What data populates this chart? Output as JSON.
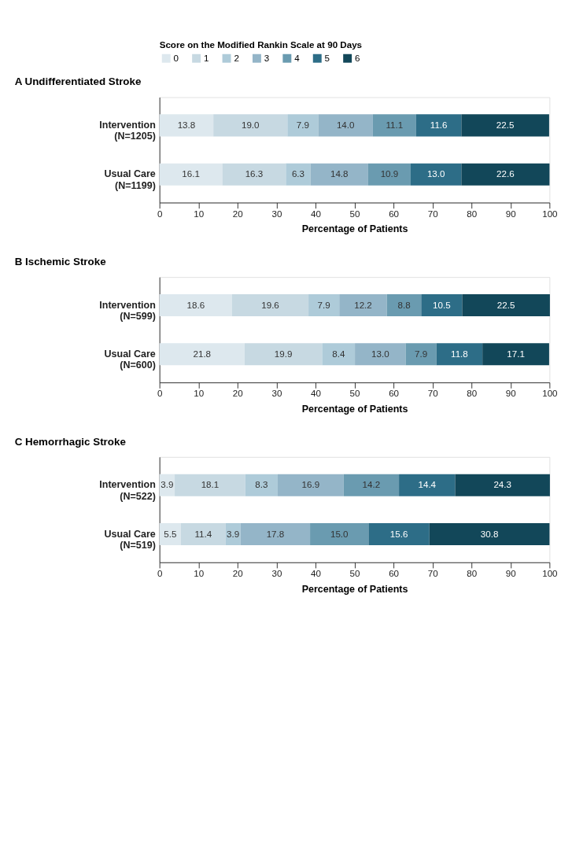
{
  "chart_data": [
    {
      "type": "bar",
      "orientation": "horizontal",
      "stacked": true,
      "title": "A  Undifferentiated Stroke",
      "legend_title": "Score on the Modified Rankin Scale at 90 Days",
      "legend": "top",
      "xlabel": "Percentage of Patients",
      "categories": [
        "Intervention\n(N=1205)",
        "Usual Care\n(N=1199)"
      ],
      "xlim": [
        0,
        100
      ],
      "xticks": [
        0,
        10,
        20,
        30,
        40,
        50,
        60,
        70,
        80,
        90,
        100
      ],
      "series": [
        {
          "name": "0",
          "color": "#dde8ee",
          "values": [
            13.8,
            16.1
          ],
          "value_labels": [
            "13.8",
            "16.1"
          ]
        },
        {
          "name": "1",
          "color": "#c7d9e2",
          "values": [
            19.0,
            16.3
          ],
          "value_labels": [
            "19.0",
            "16.3"
          ]
        },
        {
          "name": "2",
          "color": "#aecbd9",
          "values": [
            7.9,
            6.3
          ],
          "value_labels": [
            "7.9",
            "6.3"
          ]
        },
        {
          "name": "3",
          "color": "#94b5c8",
          "values": [
            14.0,
            14.8
          ],
          "value_labels": [
            "14.0",
            "14.8"
          ]
        },
        {
          "name": "4",
          "color": "#6a9bb0",
          "values": [
            11.1,
            10.9
          ],
          "value_labels": [
            "11.1",
            "10.9"
          ]
        },
        {
          "name": "5",
          "color": "#2d6d87",
          "values": [
            11.6,
            13.0
          ],
          "value_labels": [
            "11.6",
            "13.0"
          ]
        },
        {
          "name": "6",
          "color": "#124759",
          "values": [
            22.5,
            22.6
          ],
          "value_labels": [
            "22.5",
            "22.6"
          ]
        }
      ]
    },
    {
      "type": "bar",
      "orientation": "horizontal",
      "stacked": true,
      "title": "B  Ischemic Stroke",
      "xlabel": "Percentage of Patients",
      "categories": [
        "Intervention\n(N=599)",
        "Usual Care\n(N=600)"
      ],
      "xlim": [
        0,
        100
      ],
      "xticks": [
        0,
        10,
        20,
        30,
        40,
        50,
        60,
        70,
        80,
        90,
        100
      ],
      "series": [
        {
          "color": "#dde8ee",
          "values": [
            18.6,
            21.8
          ],
          "value_labels": [
            "18.6",
            "21.8"
          ]
        },
        {
          "color": "#c7d9e2",
          "values": [
            19.6,
            19.9
          ],
          "value_labels": [
            "19.6",
            "19.9"
          ]
        },
        {
          "color": "#aecbd9",
          "values": [
            7.9,
            8.4
          ],
          "value_labels": [
            "7.9",
            "8.4"
          ]
        },
        {
          "color": "#94b5c8",
          "values": [
            12.2,
            13.0
          ],
          "value_labels": [
            "12.2",
            "13.0"
          ]
        },
        {
          "color": "#6a9bb0",
          "values": [
            8.8,
            7.9
          ],
          "value_labels": [
            "8.8",
            "7.9"
          ]
        },
        {
          "color": "#2d6d87",
          "values": [
            10.5,
            11.8
          ],
          "value_labels": [
            "10.5",
            "11.8"
          ]
        },
        {
          "color": "#124759",
          "values": [
            22.5,
            17.1
          ],
          "value_labels": [
            "22.5",
            "17.1"
          ]
        }
      ]
    },
    {
      "type": "bar",
      "orientation": "horizontal",
      "stacked": true,
      "title": "C  Hemorrhagic Stroke",
      "xlabel": "Percentage of Patients",
      "categories": [
        "Intervention\n(N=522)",
        "Usual Care\n(N=519)"
      ],
      "xlim": [
        0,
        100
      ],
      "xticks": [
        0,
        10,
        20,
        30,
        40,
        50,
        60,
        70,
        80,
        90,
        100
      ],
      "series": [
        {
          "color": "#dde8ee",
          "values": [
            3.9,
            5.5
          ],
          "value_labels": [
            "3.9",
            "5.5"
          ]
        },
        {
          "color": "#c7d9e2",
          "values": [
            18.1,
            11.4
          ],
          "value_labels": [
            "18.1",
            "11.4"
          ]
        },
        {
          "color": "#aecbd9",
          "values": [
            8.3,
            3.9
          ],
          "value_labels": [
            "8.3",
            "3.9"
          ]
        },
        {
          "color": "#94b5c8",
          "values": [
            16.9,
            17.8
          ],
          "value_labels": [
            "16.9",
            "17.8"
          ]
        },
        {
          "color": "#6a9bb0",
          "values": [
            14.2,
            15.0
          ],
          "value_labels": [
            "14.2",
            "15.0"
          ]
        },
        {
          "color": "#2d6d87",
          "values": [
            14.4,
            15.6
          ],
          "value_labels": [
            "14.4",
            "15.6"
          ]
        },
        {
          "color": "#124759",
          "values": [
            24.3,
            30.8
          ],
          "value_labels": [
            "24.3",
            "30.8"
          ]
        }
      ]
    }
  ]
}
